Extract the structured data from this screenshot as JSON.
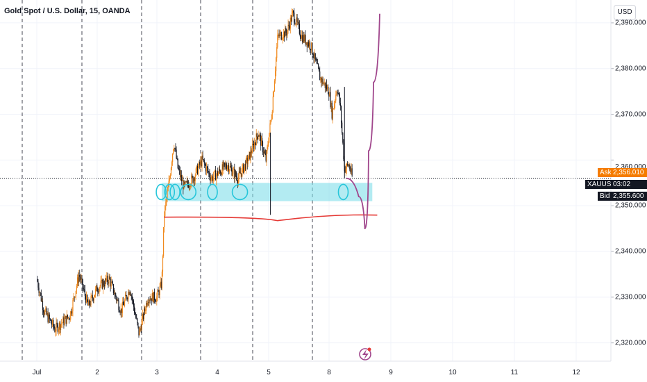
{
  "header": {
    "title": "Gold Spot / U.S. Dollar, 15, OANDA",
    "currency_button": "USD"
  },
  "colors": {
    "up": "#f0891d",
    "down": "#131722",
    "ask": "#f57c00",
    "bid": "#131722",
    "zone": "#80deea",
    "zone_marks": "#26c6da",
    "support_line": "#e53935",
    "projection": "#a0468c"
  },
  "icons": {
    "watermark": "lightning-icon"
  },
  "price_tags": {
    "symbol": "XAUUSD",
    "countdown": "03:02",
    "ask_label": "Ask",
    "ask_value": "2,356.010",
    "bid_label": "Bid",
    "bid_value": "2,355.600",
    "hidden_axis_value": "2,360.000"
  },
  "chart_data": {
    "type": "candlestick",
    "title": "Gold Spot / U.S. Dollar, 15, OANDA",
    "ylim": [
      2316,
      2395
    ],
    "y_ticks": [
      "2,320.000",
      "2,330.000",
      "2,340.000",
      "2,350.000",
      "2,360.000",
      "2,370.000",
      "2,380.000",
      "2,390.000"
    ],
    "x_ticks": [
      "Jul",
      "2",
      "3",
      "4",
      "5",
      "8",
      "9",
      "10",
      "11",
      "12"
    ],
    "session_separators": [
      "1",
      "2",
      "3",
      "4",
      "5",
      "8"
    ],
    "close_path": [
      {
        "t": 0.0,
        "p": 2334
      },
      {
        "t": 0.12,
        "p": 2327
      },
      {
        "t": 0.3,
        "p": 2323
      },
      {
        "t": 0.55,
        "p": 2326
      },
      {
        "t": 0.7,
        "p": 2335
      },
      {
        "t": 0.85,
        "p": 2328
      },
      {
        "t": 1.0,
        "p": 2332
      },
      {
        "t": 1.2,
        "p": 2334
      },
      {
        "t": 1.4,
        "p": 2327
      },
      {
        "t": 1.55,
        "p": 2332
      },
      {
        "t": 1.7,
        "p": 2322
      },
      {
        "t": 1.85,
        "p": 2330
      },
      {
        "t": 2.0,
        "p": 2330
      },
      {
        "t": 2.08,
        "p": 2333
      },
      {
        "t": 2.12,
        "p": 2348
      },
      {
        "t": 2.2,
        "p": 2355
      },
      {
        "t": 2.28,
        "p": 2364
      },
      {
        "t": 2.35,
        "p": 2358
      },
      {
        "t": 2.45,
        "p": 2354
      },
      {
        "t": 2.6,
        "p": 2356
      },
      {
        "t": 2.75,
        "p": 2360
      },
      {
        "t": 2.9,
        "p": 2356
      },
      {
        "t": 3.0,
        "p": 2357
      },
      {
        "t": 3.2,
        "p": 2359
      },
      {
        "t": 3.4,
        "p": 2356
      },
      {
        "t": 3.6,
        "p": 2360
      },
      {
        "t": 3.8,
        "p": 2366
      },
      {
        "t": 3.95,
        "p": 2360
      },
      {
        "t": 4.05,
        "p": 2370
      },
      {
        "t": 4.15,
        "p": 2387
      },
      {
        "t": 4.3,
        "p": 2388
      },
      {
        "t": 4.4,
        "p": 2392
      },
      {
        "t": 4.55,
        "p": 2387
      },
      {
        "t": 4.7,
        "p": 2385
      },
      {
        "t": 4.85,
        "p": 2378
      },
      {
        "t": 5.0,
        "p": 2375
      },
      {
        "t": 5.05,
        "p": 2370
      },
      {
        "t": 5.13,
        "p": 2376
      },
      {
        "t": 5.18,
        "p": 2372
      },
      {
        "t": 5.25,
        "p": 2358
      },
      {
        "t": 5.32,
        "p": 2359
      },
      {
        "t": 5.38,
        "p": 2356
      }
    ],
    "support_zone": {
      "from_t": 2.08,
      "to_t": 5.7,
      "low": 2351,
      "high": 2355
    },
    "touch_points_t": [
      2.07,
      2.21,
      2.3,
      2.52,
      2.92,
      3.44,
      5.23
    ],
    "support_line": {
      "from_t": 2.12,
      "to_t": 5.78,
      "price": 2347.5
    },
    "projection_path": [
      {
        "t": 5.28,
        "p": 2356
      },
      {
        "t": 5.48,
        "p": 2352
      },
      {
        "t": 5.58,
        "p": 2345
      },
      {
        "t": 5.64,
        "p": 2362
      },
      {
        "t": 5.72,
        "p": 2377
      },
      {
        "t": 5.82,
        "p": 2392
      }
    ],
    "current_price": 2356.01
  }
}
